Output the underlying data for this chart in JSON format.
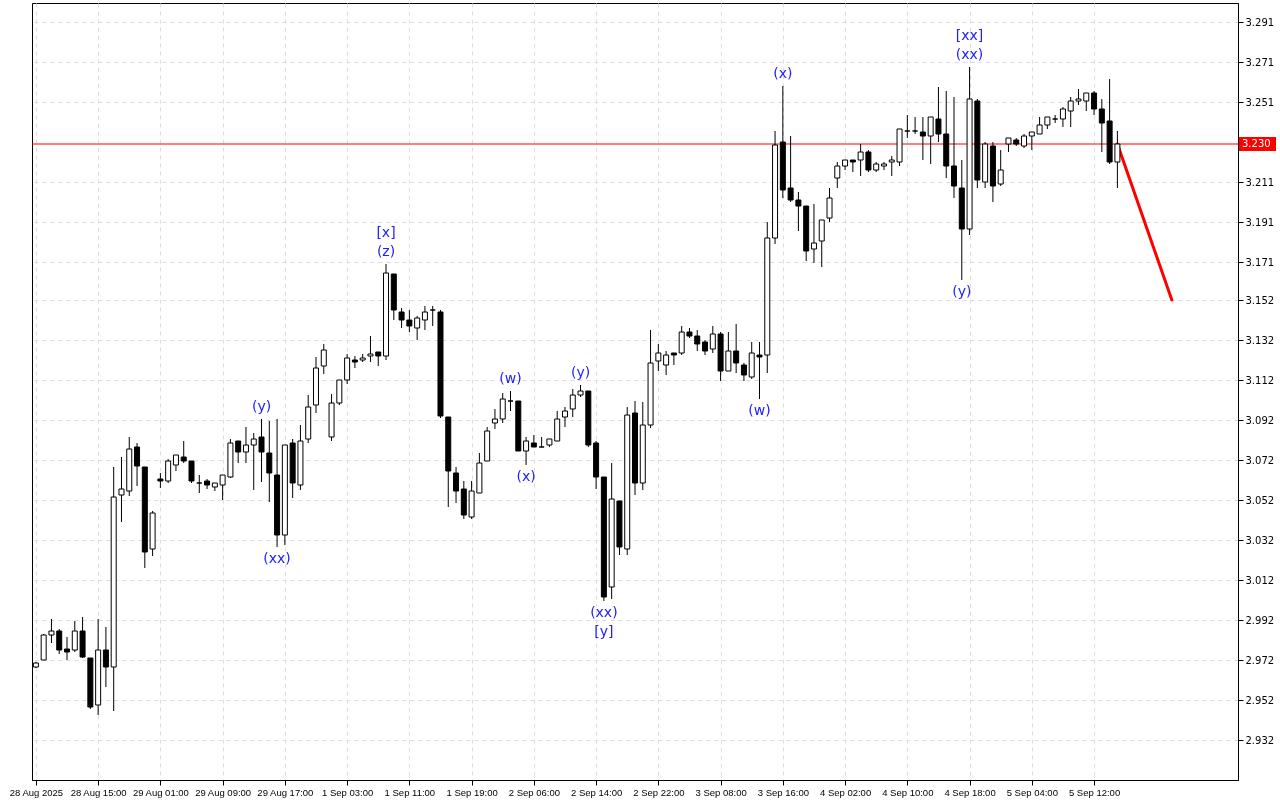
{
  "chart_data": {
    "type": "candlestick",
    "categories": [
      "28 Aug 2025",
      null,
      null,
      null,
      null,
      null,
      null,
      null,
      "28 Aug 15:00",
      null,
      null,
      null,
      null,
      null,
      null,
      null,
      "29 Aug 01:00",
      null,
      null,
      null,
      null,
      null,
      null,
      null,
      "29 Aug 09:00",
      null,
      null,
      null,
      null,
      null,
      null,
      null,
      "29 Aug 17:00",
      null,
      null,
      null,
      null,
      null,
      null,
      null,
      "1 Sep 03:00",
      null,
      null,
      null,
      null,
      null,
      null,
      null,
      "1 Sep 11:00",
      null,
      null,
      null,
      null,
      null,
      null,
      null,
      "1 Sep 19:00",
      null,
      null,
      null,
      null,
      null,
      null,
      null,
      "2 Sep 06:00",
      null,
      null,
      null,
      null,
      null,
      null,
      null,
      "2 Sep 14:00",
      null,
      null,
      null,
      null,
      null,
      null,
      null,
      "2 Sep 22:00",
      null,
      null,
      null,
      null,
      null,
      null,
      null,
      "3 Sep 08:00",
      null,
      null,
      null,
      null,
      null,
      null,
      null,
      "3 Sep 16:00",
      null,
      null,
      null,
      null,
      null,
      null,
      null,
      "4 Sep 02:00",
      null,
      null,
      null,
      null,
      null,
      null,
      null,
      "4 Sep 10:00",
      null,
      null,
      null,
      null,
      null,
      null,
      null,
      "4 Sep 18:00",
      null,
      null,
      null,
      null,
      null,
      null,
      null,
      "5 Sep 04:00",
      null,
      null,
      null,
      null,
      null,
      null,
      null,
      "5 Sep 12:00",
      null,
      null,
      null,
      null,
      null,
      null,
      null,
      null,
      null,
      null,
      null,
      null,
      null,
      null,
      null,
      null,
      null,
      null
    ],
    "ohlc": [
      [
        2.9685,
        2.971,
        2.968,
        2.9705
      ],
      [
        2.972,
        2.985,
        2.972,
        2.9845
      ],
      [
        2.9845,
        2.9925,
        2.9805,
        2.9865
      ],
      [
        2.9865,
        2.9875,
        2.975,
        2.977
      ],
      [
        2.9775,
        2.9835,
        2.972,
        2.976
      ],
      [
        2.977,
        2.9915,
        2.976,
        2.9865
      ],
      [
        2.9865,
        2.9935,
        2.973,
        2.9735
      ],
      [
        2.973,
        2.973,
        2.9475,
        2.9485
      ],
      [
        2.9495,
        2.9925,
        2.9445,
        2.977
      ],
      [
        2.977,
        2.9885,
        2.9585,
        2.9685
      ],
      [
        2.9685,
        3.0685,
        2.9465,
        3.0535
      ],
      [
        3.0545,
        3.0735,
        3.041,
        3.0575
      ],
      [
        3.0565,
        3.0835,
        3.054,
        3.0775
      ],
      [
        3.0785,
        3.0805,
        3.059,
        3.069
      ],
      [
        3.0685,
        3.0685,
        3.018,
        3.026
      ],
      [
        3.0275,
        3.0465,
        3.024,
        3.0455
      ],
      [
        3.0625,
        3.0655,
        3.058,
        3.0615
      ],
      [
        3.0615,
        3.0725,
        3.0605,
        3.0715
      ],
      [
        3.0695,
        3.0745,
        3.0665,
        3.0745
      ],
      [
        3.0735,
        3.0815,
        3.0705,
        3.0715
      ],
      [
        3.0715,
        3.0715,
        3.0605,
        3.0615
      ],
      [
        3.0605,
        3.0645,
        3.0555,
        3.0605
      ],
      [
        3.0615,
        3.0625,
        3.0575,
        3.0595
      ],
      [
        3.0585,
        3.0605,
        3.0565,
        3.0605
      ],
      [
        3.0595,
        3.0645,
        3.052,
        3.0645
      ],
      [
        3.0635,
        3.0825,
        3.063,
        3.0805
      ],
      [
        3.0815,
        3.0815,
        3.0705,
        3.076
      ],
      [
        3.076,
        3.0885,
        3.0705,
        3.0795
      ],
      [
        3.0795,
        3.0855,
        3.057,
        3.0825
      ],
      [
        3.0835,
        3.0925,
        3.061,
        3.076
      ],
      [
        3.0755,
        3.0915,
        3.051,
        3.0655
      ],
      [
        3.0645,
        3.0925,
        3.0285,
        3.0345
      ],
      [
        3.0345,
        3.0795,
        3.0295,
        3.0795
      ],
      [
        3.0805,
        3.0825,
        3.053,
        3.0605
      ],
      [
        3.0595,
        3.0895,
        3.057,
        3.0815
      ],
      [
        3.0825,
        3.1045,
        3.0805,
        3.0985
      ],
      [
        3.0995,
        3.1235,
        3.0955,
        3.118
      ],
      [
        3.119,
        3.13,
        3.115,
        3.127
      ],
      [
        3.0835,
        3.105,
        3.0815,
        3.1005
      ],
      [
        3.1005,
        3.112,
        3.0995,
        3.112
      ],
      [
        3.112,
        3.125,
        3.11,
        3.123
      ],
      [
        3.122,
        3.124,
        3.118,
        3.121
      ],
      [
        3.122,
        3.125,
        3.121,
        3.123
      ],
      [
        3.124,
        3.134,
        3.121,
        3.125
      ],
      [
        3.126,
        3.126,
        3.119,
        3.124
      ],
      [
        3.124,
        3.17,
        3.122,
        3.1655
      ],
      [
        3.165,
        3.165,
        3.142,
        3.147
      ],
      [
        3.146,
        3.148,
        3.138,
        3.142
      ],
      [
        3.142,
        3.147,
        3.136,
        3.139
      ],
      [
        3.138,
        3.144,
        3.132,
        3.143
      ],
      [
        3.142,
        3.149,
        3.137,
        3.146
      ],
      [
        3.147,
        3.149,
        3.139,
        3.147
      ],
      [
        3.146,
        3.147,
        3.093,
        3.094
      ],
      [
        3.0935,
        3.0935,
        3.0485,
        3.0665
      ],
      [
        3.0655,
        3.0685,
        3.0505,
        3.0565
      ],
      [
        3.0575,
        3.0615,
        3.0425,
        3.0445
      ],
      [
        3.0435,
        3.0615,
        3.0425,
        3.0565
      ],
      [
        3.0555,
        3.0755,
        3.0555,
        3.0705
      ],
      [
        3.0715,
        3.0885,
        3.0715,
        3.0865
      ],
      [
        3.0905,
        3.0975,
        3.0875,
        3.0925
      ],
      [
        3.0925,
        3.1055,
        3.0905,
        3.1025
      ],
      [
        3.1015,
        3.1065,
        3.0965,
        3.1015
      ],
      [
        3.1015,
        3.1015,
        3.0765,
        3.0765
      ],
      [
        3.0765,
        3.0835,
        3.0695,
        3.0815
      ],
      [
        3.0805,
        3.0845,
        3.0785,
        3.0785
      ],
      [
        3.0785,
        3.0835,
        3.0785,
        3.0785
      ],
      [
        3.0795,
        3.0825,
        3.0785,
        3.0825
      ],
      [
        3.0815,
        3.0965,
        3.0815,
        3.0925
      ],
      [
        3.0935,
        3.0985,
        3.0885,
        3.0965
      ],
      [
        3.0975,
        3.1075,
        3.0935,
        3.1045
      ],
      [
        3.1045,
        3.1095,
        3.1035,
        3.1065
      ],
      [
        3.1065,
        3.1065,
        3.0785,
        3.0795
      ],
      [
        3.0805,
        3.0815,
        3.0575,
        3.0635
      ],
      [
        3.0635,
        3.0635,
        3.0015,
        3.0035
      ],
      [
        3.0085,
        3.0705,
        3.0025,
        3.0525
      ],
      [
        3.0515,
        3.0515,
        3.0245,
        3.0285
      ],
      [
        3.0275,
        3.0985,
        3.0245,
        3.0945
      ],
      [
        3.0955,
        3.1015,
        3.0545,
        3.0605
      ],
      [
        3.0605,
        3.101,
        3.057,
        3.0895
      ],
      [
        3.0895,
        3.137,
        3.088,
        3.1205
      ],
      [
        3.1215,
        3.13,
        3.1165,
        3.1255
      ],
      [
        3.1195,
        3.1265,
        3.1145,
        3.1245
      ],
      [
        3.1255,
        3.1255,
        3.1195,
        3.1245
      ],
      [
        3.1255,
        3.139,
        3.1245,
        3.136
      ],
      [
        3.136,
        3.138,
        3.133,
        3.134
      ],
      [
        3.134,
        3.137,
        3.1265,
        3.13
      ],
      [
        3.131,
        3.132,
        3.1245,
        3.1265
      ],
      [
        3.1275,
        3.139,
        3.1255,
        3.135
      ],
      [
        3.135,
        3.136,
        3.1115,
        3.1165
      ],
      [
        3.1165,
        3.136,
        3.1165,
        3.1265
      ],
      [
        3.1265,
        3.14,
        3.1155,
        3.1205
      ],
      [
        3.1195,
        3.1205,
        3.1115,
        3.1145
      ],
      [
        3.1135,
        3.131,
        3.1125,
        3.1255
      ],
      [
        3.1245,
        3.131,
        3.1025,
        3.1235
      ],
      [
        3.1245,
        3.191,
        3.1155,
        3.183
      ],
      [
        3.183,
        3.2365,
        3.18,
        3.2295
      ],
      [
        3.231,
        3.259,
        3.203,
        3.207
      ],
      [
        3.208,
        3.234,
        3.201,
        3.202
      ],
      [
        3.202,
        3.206,
        3.1865,
        3.199
      ],
      [
        3.199,
        3.199,
        3.1715,
        3.1765
      ],
      [
        3.1775,
        3.2,
        3.1705,
        3.1805
      ],
      [
        3.1815,
        3.192,
        3.1685,
        3.192
      ],
      [
        3.193,
        3.208,
        3.191,
        3.203
      ],
      [
        3.213,
        3.221,
        3.208,
        3.219
      ],
      [
        3.219,
        3.222,
        3.217,
        3.222
      ],
      [
        3.222,
        3.222,
        3.216,
        3.221
      ],
      [
        3.222,
        3.23,
        3.214,
        3.226
      ],
      [
        3.226,
        3.227,
        3.216,
        3.217
      ],
      [
        3.217,
        3.221,
        3.216,
        3.22
      ],
      [
        3.219,
        3.221,
        3.217,
        3.22
      ],
      [
        3.221,
        3.224,
        3.214,
        3.222
      ],
      [
        3.221,
        3.2375,
        3.219,
        3.2375
      ],
      [
        3.2365,
        3.2445,
        3.233,
        3.2365
      ],
      [
        3.2365,
        3.2435,
        3.235,
        3.2365
      ],
      [
        3.236,
        3.2435,
        3.222,
        3.234
      ],
      [
        3.234,
        3.2435,
        3.22,
        3.2435
      ],
      [
        3.2425,
        3.2585,
        3.231,
        3.235
      ],
      [
        3.235,
        3.2565,
        3.213,
        3.219
      ],
      [
        3.219,
        3.2535,
        3.203,
        3.209
      ],
      [
        3.208,
        3.222,
        3.162,
        3.1875
      ],
      [
        3.1875,
        3.2685,
        3.1845,
        3.2525
      ],
      [
        3.2515,
        3.2525,
        3.208,
        3.212
      ],
      [
        3.211,
        3.231,
        3.208,
        3.23
      ],
      [
        3.229,
        3.231,
        3.201,
        3.209
      ],
      [
        3.21,
        3.227,
        3.209,
        3.217
      ],
      [
        3.23,
        3.233,
        3.226,
        3.233
      ],
      [
        3.232,
        3.233,
        3.229,
        3.23
      ],
      [
        3.229,
        3.235,
        3.228,
        3.234
      ],
      [
        3.234,
        3.236,
        3.227,
        3.236
      ],
      [
        3.235,
        3.2435,
        3.235,
        3.2395
      ],
      [
        3.2395,
        3.2435,
        3.2375,
        3.2435
      ],
      [
        3.2425,
        3.2445,
        3.2405,
        3.2425
      ],
      [
        3.2425,
        3.2485,
        3.2385,
        3.2475
      ],
      [
        3.2465,
        3.2535,
        3.2385,
        3.2515
      ],
      [
        3.2515,
        3.2575,
        3.2495,
        3.2525
      ],
      [
        3.2515,
        3.2555,
        3.2465,
        3.2555
      ],
      [
        3.2555,
        3.2565,
        3.2445,
        3.2475
      ],
      [
        3.2475,
        3.2525,
        3.226,
        3.2405
      ],
      [
        3.2415,
        3.2625,
        3.22,
        3.221
      ],
      [
        3.221,
        3.2365,
        3.208,
        3.23
      ],
      null,
      null,
      null,
      null,
      null,
      null,
      null,
      null,
      null,
      null,
      null,
      null,
      null,
      null,
      null
    ],
    "series": [
      {
        "type": "line",
        "color": "#ff0000",
        "values": [
          null,
          null,
          null,
          null,
          null,
          null,
          null,
          null,
          null,
          null,
          null,
          null,
          null,
          null,
          null,
          null,
          null,
          null,
          null,
          null,
          null,
          null,
          null,
          null,
          null,
          null,
          null,
          null,
          null,
          null,
          null,
          null,
          null,
          null,
          null,
          null,
          null,
          null,
          null,
          null,
          null,
          null,
          null,
          null,
          null,
          null,
          null,
          null,
          null,
          null,
          null,
          null,
          null,
          null,
          null,
          null,
          null,
          null,
          null,
          null,
          null,
          null,
          null,
          null,
          null,
          null,
          null,
          null,
          null,
          null,
          null,
          null,
          null,
          null,
          null,
          null,
          null,
          null,
          null,
          null,
          null,
          null,
          null,
          null,
          null,
          null,
          null,
          null,
          null,
          null,
          null,
          null,
          null,
          null,
          null,
          null,
          null,
          null,
          null,
          null,
          null,
          null,
          null,
          null,
          null,
          null,
          null,
          null,
          null,
          null,
          null,
          null,
          null,
          null,
          null,
          null,
          null,
          null,
          null,
          null,
          null,
          null,
          null,
          null,
          null,
          null,
          null,
          null,
          null,
          null,
          null,
          null,
          null,
          null,
          null,
          null,
          null,
          null,
          null,
          3.23,
          null,
          null,
          null,
          null,
          null,
          null,
          3.152,
          null,
          null,
          null,
          null,
          null,
          null,
          null,
          null
        ]
      }
    ],
    "ylim": [
      2.912,
      3.3005
    ],
    "yticks": [
      2.932,
      2.952,
      2.972,
      2.992,
      3.012,
      3.032,
      3.052,
      3.072,
      3.092,
      3.112,
      3.132,
      3.152,
      3.171,
      3.191,
      3.211,
      3.251,
      3.271,
      3.291
    ],
    "grid": true,
    "ref_lines": [
      {
        "axis": "y",
        "value": 3.23,
        "label": "3.230",
        "color": "#ff0000"
      }
    ],
    "annotations": [
      {
        "text": "(y)",
        "y": 3.0925
      },
      {
        "text": "(xx)",
        "y": 3.0285
      },
      {
        "text": "(z)",
        "y": 3.17
      },
      {
        "text": "[x]",
        "y": 3.17
      },
      {
        "text": "(w)",
        "y": 3.1065
      },
      {
        "text": "(x)",
        "y": 3.0695
      },
      {
        "text": "(y)",
        "y": 3.1095
      },
      {
        "text": "(xx)",
        "y": 3.0015
      },
      {
        "text": "[y]",
        "y": 3.0015
      },
      {
        "text": "(w)",
        "y": 3.1025
      },
      {
        "text": "(x)",
        "y": 3.259
      },
      {
        "text": "(xx)",
        "y": 3.2685
      },
      {
        "text": "[xx]",
        "y": 3.2685
      },
      {
        "text": "(y)",
        "y": 3.162
      }
    ]
  }
}
